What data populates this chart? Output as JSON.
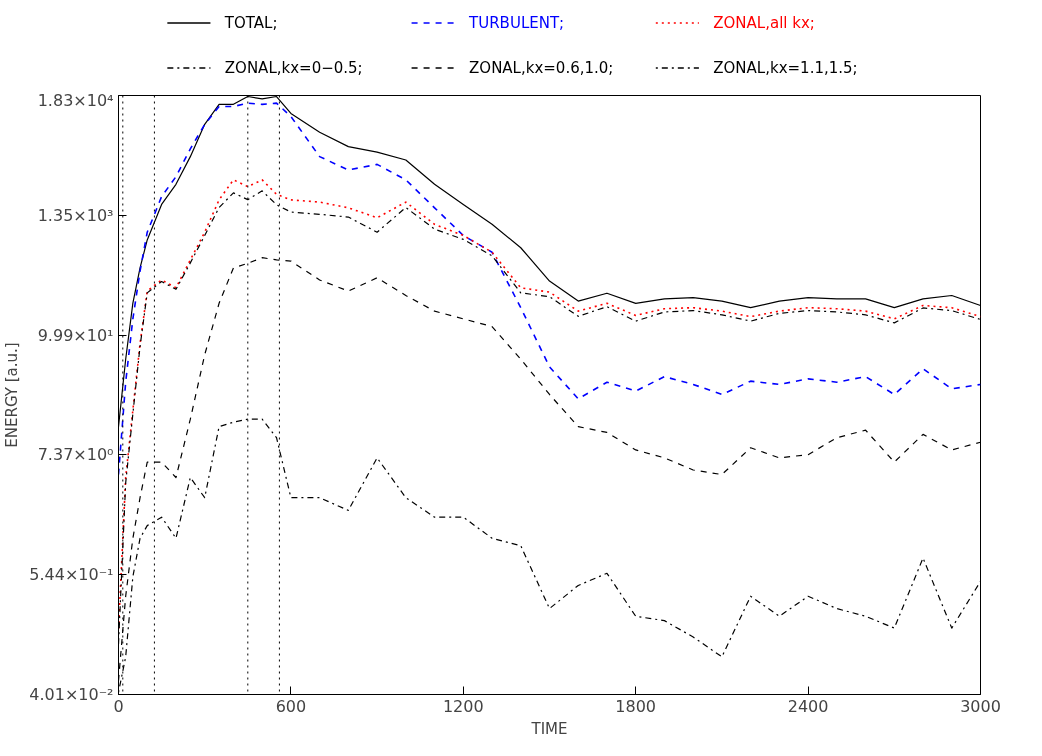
{
  "chart_data": {
    "type": "line",
    "xlabel": "TIME",
    "ylabel": "ENERGY [a.u.]",
    "log": true,
    "legend": "top",
    "x": [
      0,
      25,
      50,
      75,
      100,
      150,
      200,
      250,
      300,
      350,
      400,
      450,
      500,
      550,
      600,
      700,
      800,
      900,
      1000,
      1100,
      1200,
      1300,
      1400,
      1500,
      1600,
      1700,
      1800,
      1900,
      2000,
      2100,
      2200,
      2300,
      2400,
      2500,
      2600,
      2700,
      2800,
      2900,
      3000
    ],
    "xlim": [
      0,
      3000
    ],
    "xticks": [
      0,
      600,
      1200,
      1800,
      2400,
      3000
    ],
    "ylim": [
      0.0401,
      18300
    ],
    "yticks": [
      {
        "value": 0.0401,
        "label": "4.01×10⁻²"
      },
      {
        "value": 0.544,
        "label": "5.44×10⁻¹"
      },
      {
        "value": 7.37,
        "label": "7.37×10⁰"
      },
      {
        "value": 99.9,
        "label": "9.99×10¹"
      },
      {
        "value": 1350,
        "label": "1.35×10³"
      },
      {
        "value": 18300,
        "label": "1.83×10⁴"
      }
    ],
    "ref_lines": [
      {
        "axis": "x",
        "value": 15,
        "color": "#000000",
        "line_style": "dotted"
      },
      {
        "axis": "x",
        "value": 125,
        "color": "#000000",
        "line_style": "dotted"
      },
      {
        "axis": "x",
        "value": 450,
        "color": "#000000",
        "line_style": "dotted"
      },
      {
        "axis": "x",
        "value": 560,
        "color": "#000000",
        "line_style": "dotted"
      }
    ],
    "series": [
      {
        "name": "TOTAL;",
        "color": "#000000",
        "line_style": "solid",
        "values": [
          13.6,
          59,
          200,
          430,
          790,
          1710,
          2650,
          4840,
          9770,
          15100,
          15100,
          17900,
          17000,
          17900,
          12400,
          8240,
          6020,
          5330,
          4500,
          2650,
          1710,
          1110,
          667,
          323,
          209,
          248,
          199,
          219,
          225,
          209,
          181,
          209,
          225,
          219,
          219,
          181,
          219,
          236,
          190
        ]
      },
      {
        "name": "TURBULENT;",
        "color": "#0000ff",
        "line_style": "dashed",
        "values": [
          4.8,
          35.8,
          142,
          401,
          935,
          2030,
          3130,
          5740,
          9770,
          14400,
          14400,
          15500,
          15100,
          15500,
          11600,
          4840,
          3620,
          4090,
          2920,
          1590,
          871,
          605,
          181,
          50,
          24.9,
          35.8,
          29.5,
          40.4,
          34.1,
          27.4,
          36.6,
          34.1,
          38.5,
          35.8,
          40.4,
          27.4,
          47.9,
          31,
          34.1
        ]
      },
      {
        "name": "ZONAL,all kx;",
        "color": "#ff0000",
        "line_style": "dotted",
        "values": [
          0.167,
          4.5,
          19.5,
          83,
          260,
          331,
          279,
          512,
          935,
          1890,
          2920,
          2520,
          2920,
          2130,
          1890,
          1800,
          1590,
          1280,
          1800,
          1110,
          871,
          605,
          279,
          254,
          168,
          199,
          153,
          177,
          181,
          168,
          149,
          168,
          181,
          177,
          168,
          142,
          190,
          181,
          149
        ]
      },
      {
        "name": "ZONAL,kx=0−0.5;",
        "color": "#000000",
        "line_style": "dashdot",
        "values": [
          0.12,
          4.0,
          18,
          78,
          250,
          320,
          270,
          480,
          870,
          1600,
          2200,
          1900,
          2300,
          1700,
          1450,
          1380,
          1300,
          935,
          1600,
          1000,
          800,
          560,
          250,
          230,
          150,
          185,
          135,
          165,
          170,
          155,
          135,
          160,
          170,
          165,
          155,
          130,
          180,
          170,
          140
        ]
      },
      {
        "name": "ZONAL,kx=0.6,1.0;",
        "color": "#000000",
        "line_style": "dashed",
        "values": [
          0.054,
          0.34,
          1.2,
          2.9,
          6.3,
          6.3,
          4.5,
          16,
          65,
          199,
          430,
          475,
          537,
          512,
          499,
          331,
          260,
          347,
          236,
          168,
          142,
          120,
          59,
          27.4,
          13.6,
          12,
          8.2,
          6.9,
          5.3,
          4.8,
          8.6,
          6.9,
          7.4,
          10.7,
          12.6,
          6.3,
          11.5,
          8.2,
          9.7
        ]
      },
      {
        "name": "ZONAL,kx=1.1,1.5;",
        "color": "#000000",
        "line_style": "dotdash",
        "values": [
          0.042,
          0.091,
          0.52,
          1.2,
          1.58,
          1.9,
          1.2,
          4.5,
          2.9,
          13.6,
          15,
          16,
          16,
          10.7,
          2.9,
          2.9,
          2.2,
          6.9,
          2.9,
          1.9,
          1.9,
          1.2,
          1.02,
          0.26,
          0.43,
          0.56,
          0.22,
          0.2,
          0.14,
          0.091,
          0.34,
          0.22,
          0.34,
          0.26,
          0.22,
          0.17,
          0.78,
          0.17,
          0.47
        ]
      }
    ]
  }
}
